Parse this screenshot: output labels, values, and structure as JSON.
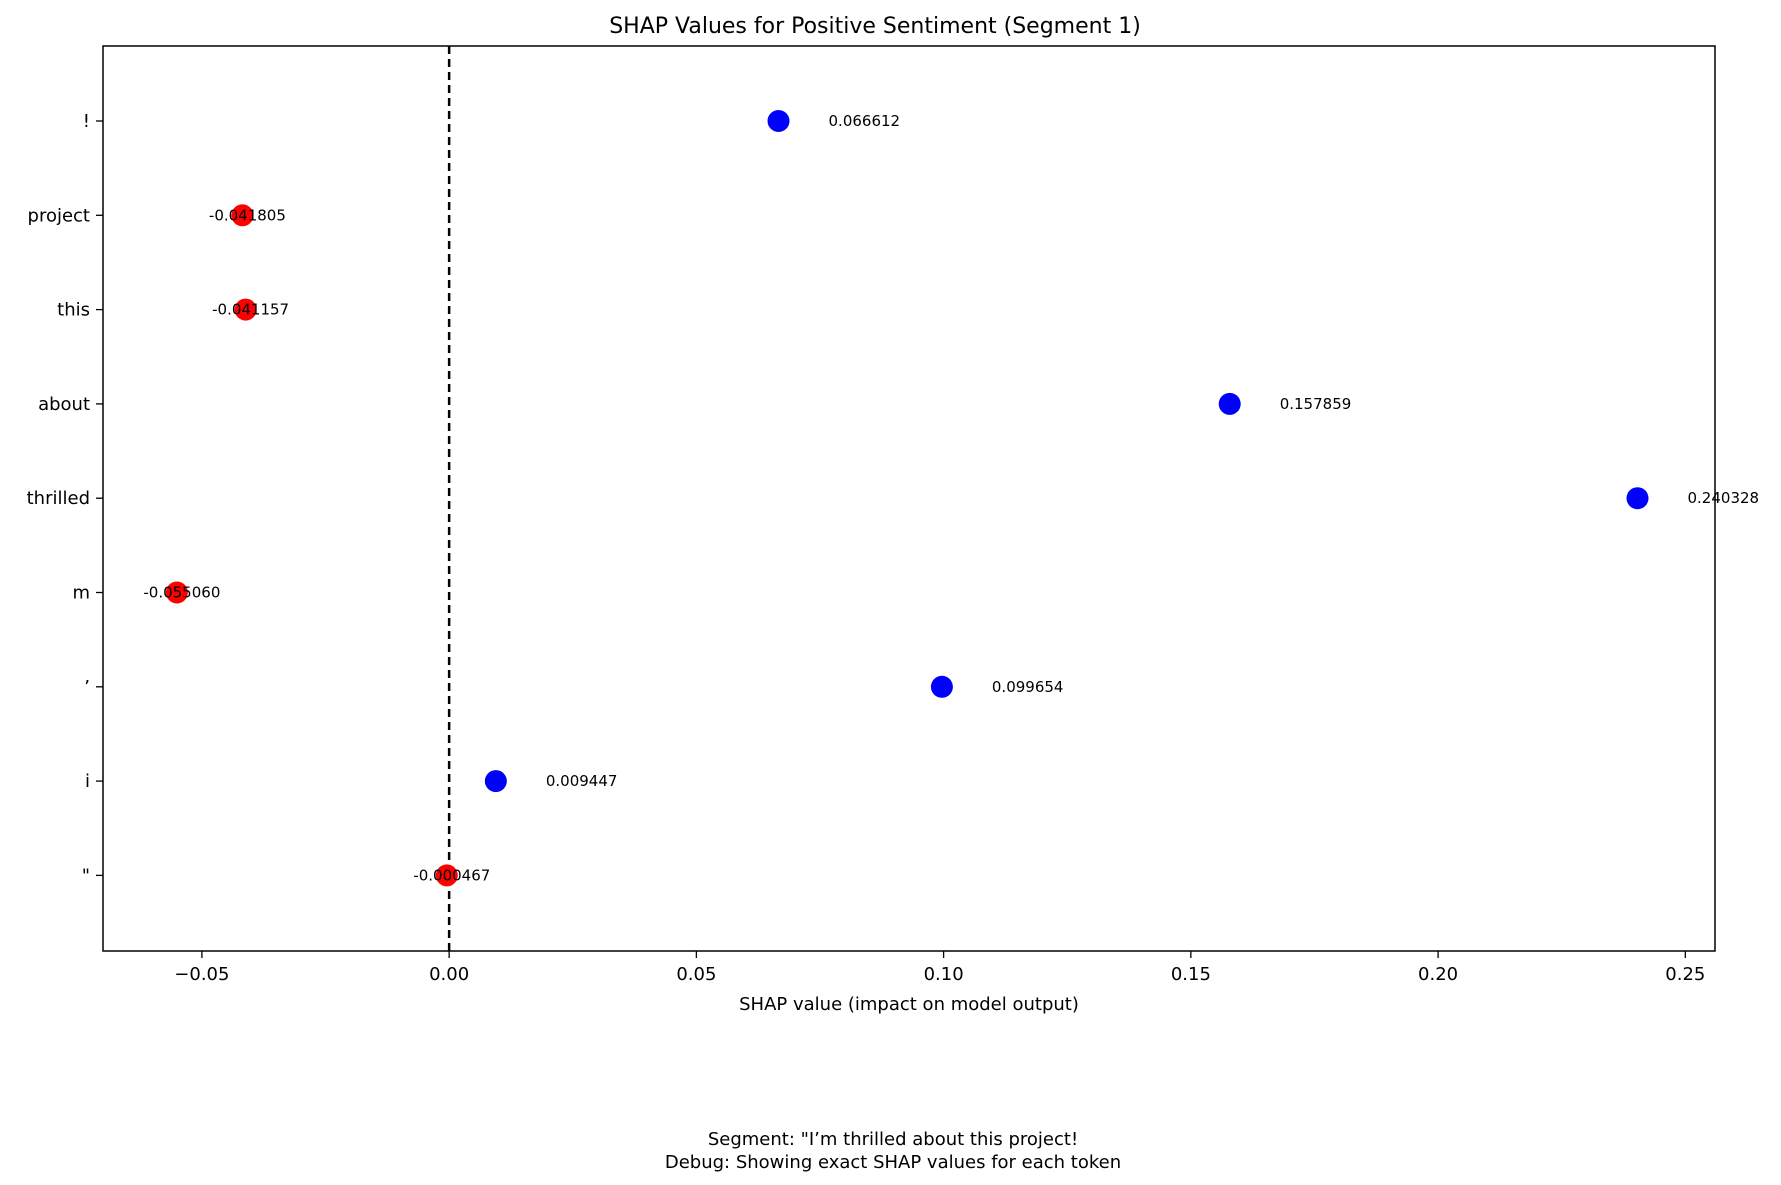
{
  "chart_data": {
    "type": "scatter",
    "title": "SHAP Values for Positive Sentiment (Segment 1)",
    "xlabel": "SHAP value (impact on model output)",
    "ylabel": "",
    "xlim": [
      -0.07,
      0.256
    ],
    "xticks": [
      -0.05,
      0.0,
      0.05,
      0.1,
      0.15,
      0.2,
      0.25
    ],
    "xtick_labels": [
      "−0.05",
      "0.00",
      "0.05",
      "0.10",
      "0.15",
      "0.20",
      "0.25"
    ],
    "grid": false,
    "zero_line": {
      "x": 0.0,
      "style": "dashed",
      "color": "#000000"
    },
    "colors": {
      "positive": "#0000ff",
      "negative": "#ff0000"
    },
    "tokens": [
      "\"",
      "i",
      "’",
      "m",
      "thrilled",
      "about",
      "this",
      "project",
      "!"
    ],
    "values": [
      -0.000467,
      0.009447,
      0.099654,
      -0.05506,
      0.240328,
      0.157859,
      -0.041157,
      -0.041805,
      0.066612
    ],
    "value_labels": [
      "-0.000467",
      "0.009447",
      "0.099654",
      "-0.055060",
      "0.240328",
      "0.157859",
      "-0.041157",
      "-0.041805",
      "0.066612"
    ],
    "footer": [
      "Segment: \"I’m thrilled about this project!",
      "Debug: Showing exact SHAP values for each token"
    ]
  }
}
